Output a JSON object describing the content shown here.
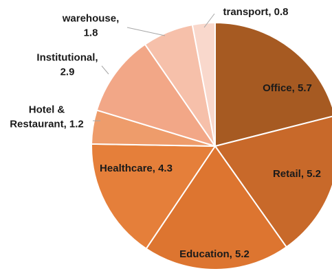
{
  "chart_data": {
    "type": "pie",
    "title": "",
    "slices": [
      {
        "label": "Office",
        "value": 5.7,
        "color": "#a65a22",
        "text_lines": [
          "Office, 5.7"
        ]
      },
      {
        "label": "Retail",
        "value": 5.2,
        "color": "#c8692a",
        "text_lines": [
          "Retail, 5.2"
        ]
      },
      {
        "label": "Education",
        "value": 5.2,
        "color": "#dd7530",
        "text_lines": [
          "Education, 5.2"
        ]
      },
      {
        "label": "Healthcare",
        "value": 4.3,
        "color": "#e57f3a",
        "text_lines": [
          "Healthcare, 4.3"
        ]
      },
      {
        "label": "Hotel & Restaurant",
        "value": 1.2,
        "color": "#ee9c6b",
        "text_lines": [
          "Hotel &",
          "Restaurant, 1.2"
        ]
      },
      {
        "label": "Institutional",
        "value": 2.9,
        "color": "#f2a787",
        "text_lines": [
          "Institutional,",
          "2.9"
        ]
      },
      {
        "label": "warehouse",
        "value": 1.8,
        "color": "#f6c0aa",
        "text_lines": [
          "warehouse,",
          "1.8"
        ]
      },
      {
        "label": "transport",
        "value": 0.8,
        "color": "#f9d8cc",
        "text_lines": [
          "transport, 0.8"
        ]
      }
    ]
  }
}
